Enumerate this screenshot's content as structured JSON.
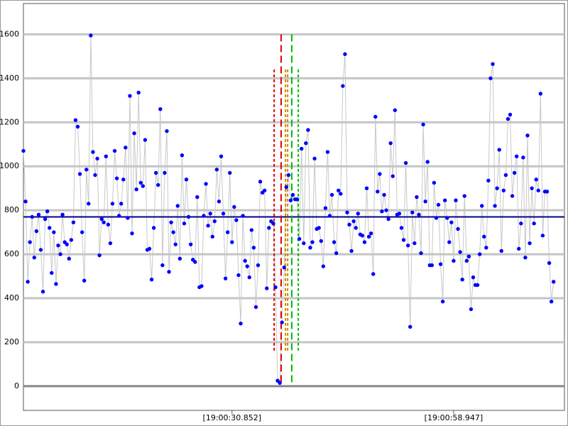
{
  "chart_data": {
    "type": "line",
    "values": [
      1070,
      840,
      475,
      655,
      770,
      585,
      705,
      780,
      620,
      430,
      760,
      795,
      720,
      515,
      700,
      465,
      640,
      600,
      780,
      655,
      645,
      580,
      665,
      745,
      1210,
      1180,
      965,
      700,
      480,
      985,
      830,
      1595,
      1065,
      960,
      1035,
      595,
      760,
      745,
      1045,
      735,
      650,
      830,
      1070,
      945,
      775,
      830,
      940,
      1085,
      765,
      1320,
      695,
      1150,
      895,
      1335,
      925,
      910,
      1120,
      620,
      625,
      485,
      720,
      970,
      915,
      1260,
      550,
      970,
      1160,
      520,
      745,
      700,
      645,
      820,
      580,
      1050,
      740,
      940,
      770,
      645,
      575,
      565,
      860,
      450,
      455,
      775,
      920,
      730,
      785,
      680,
      750,
      985,
      840,
      1045,
      785,
      490,
      700,
      970,
      655,
      815,
      755,
      505,
      285,
      775,
      570,
      545,
      495,
      710,
      630,
      360,
      550,
      930,
      880,
      890,
      445,
      720,
      750,
      740,
      450,
      25,
      15,
      290,
      540,
      905,
      960,
      845,
      870,
      850,
      850,
      670,
      1080,
      650,
      1105,
      1165,
      630,
      655,
      1035,
      715,
      720,
      660,
      545,
      810,
      1065,
      775,
      870,
      655,
      605,
      890,
      875,
      1365,
      1510,
      790,
      735,
      615,
      750,
      720,
      785,
      690,
      685,
      655,
      900,
      680,
      695,
      510,
      1225,
      885,
      965,
      795,
      870,
      800,
      760,
      1105,
      955,
      1255,
      780,
      785,
      720,
      665,
      1015,
      640,
      270,
      790,
      650,
      860,
      780,
      605,
      1190,
      840,
      1020,
      550,
      550,
      925,
      765,
      825,
      555,
      385,
      845,
      765,
      655,
      745,
      570,
      845,
      715,
      610,
      485,
      865,
      570,
      590,
      350,
      495,
      460,
      460,
      600,
      820,
      680,
      630,
      935,
      1400,
      1465,
      820,
      900,
      1075,
      615,
      890,
      960,
      1215,
      1235,
      865,
      970,
      1045,
      625,
      740,
      1040,
      585,
      1140,
      650,
      900,
      740,
      940,
      890,
      1330,
      685,
      885,
      885,
      560,
      385,
      475
    ],
    "color": "#0000ff",
    "line_color": "#c8c8c8",
    "xlim": [
      0,
      249
    ],
    "ylim": [
      -110,
      1740
    ],
    "xticks": [
      {
        "value": 96,
        "label": "[19:00:30.852]"
      },
      {
        "value": 198,
        "label": "[19:00:58.947]"
      }
    ],
    "yticks": [
      0,
      200,
      400,
      600,
      800,
      1000,
      1200,
      1400,
      1600
    ],
    "grid": true,
    "mean": {
      "value": 770,
      "color": "#00008b"
    },
    "cursors": [
      {
        "x": 115.4,
        "color": "#dd0000",
        "style": "short"
      },
      {
        "x": 118.6,
        "color": "#dd0000",
        "style": "long"
      },
      {
        "x": 120.6,
        "color": "#cc8800",
        "style": "short"
      },
      {
        "x": 121.6,
        "color": "#cc8800",
        "style": "short"
      },
      {
        "x": 123.5,
        "color": "#00bb00",
        "style": "long"
      },
      {
        "x": 126.5,
        "color": "#00bb00",
        "style": "short"
      }
    ]
  }
}
